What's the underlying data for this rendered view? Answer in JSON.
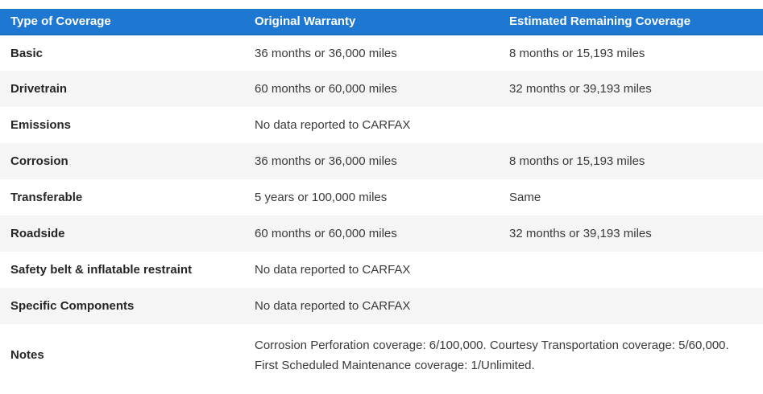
{
  "table": {
    "header": {
      "background": "#1e78d2",
      "text_color": "#ffffff",
      "columns": [
        "Type of Coverage",
        "Original Warranty",
        "Estimated Remaining Coverage"
      ]
    },
    "stripe_color": "#f5f5f5",
    "rows": [
      {
        "type": "Basic",
        "original": "36 months or 36,000 miles",
        "remaining": "8 months or 15,193 miles"
      },
      {
        "type": "Drivetrain",
        "original": "60 months or 60,000 miles",
        "remaining": "32 months or 39,193 miles"
      },
      {
        "type": "Emissions",
        "original": "No data reported to CARFAX",
        "remaining": ""
      },
      {
        "type": "Corrosion",
        "original": "36 months or 36,000 miles",
        "remaining": "8 months or 15,193 miles"
      },
      {
        "type": "Transferable",
        "original": "5 years or 100,000 miles",
        "remaining": "Same"
      },
      {
        "type": "Roadside",
        "original": "60 months or 60,000 miles",
        "remaining": "32 months or 39,193 miles"
      },
      {
        "type": "Safety belt & inflatable restraint",
        "original": "No data reported to CARFAX",
        "remaining": ""
      },
      {
        "type": "Specific Components",
        "original": "No data reported to CARFAX",
        "remaining": ""
      },
      {
        "type": "Notes",
        "original": "Corrosion Perforation coverage: 6/100,000. Courtesy Transportation coverage: 5/60,000. First Scheduled Maintenance coverage: 1/Unlimited.",
        "remaining": null
      }
    ]
  }
}
